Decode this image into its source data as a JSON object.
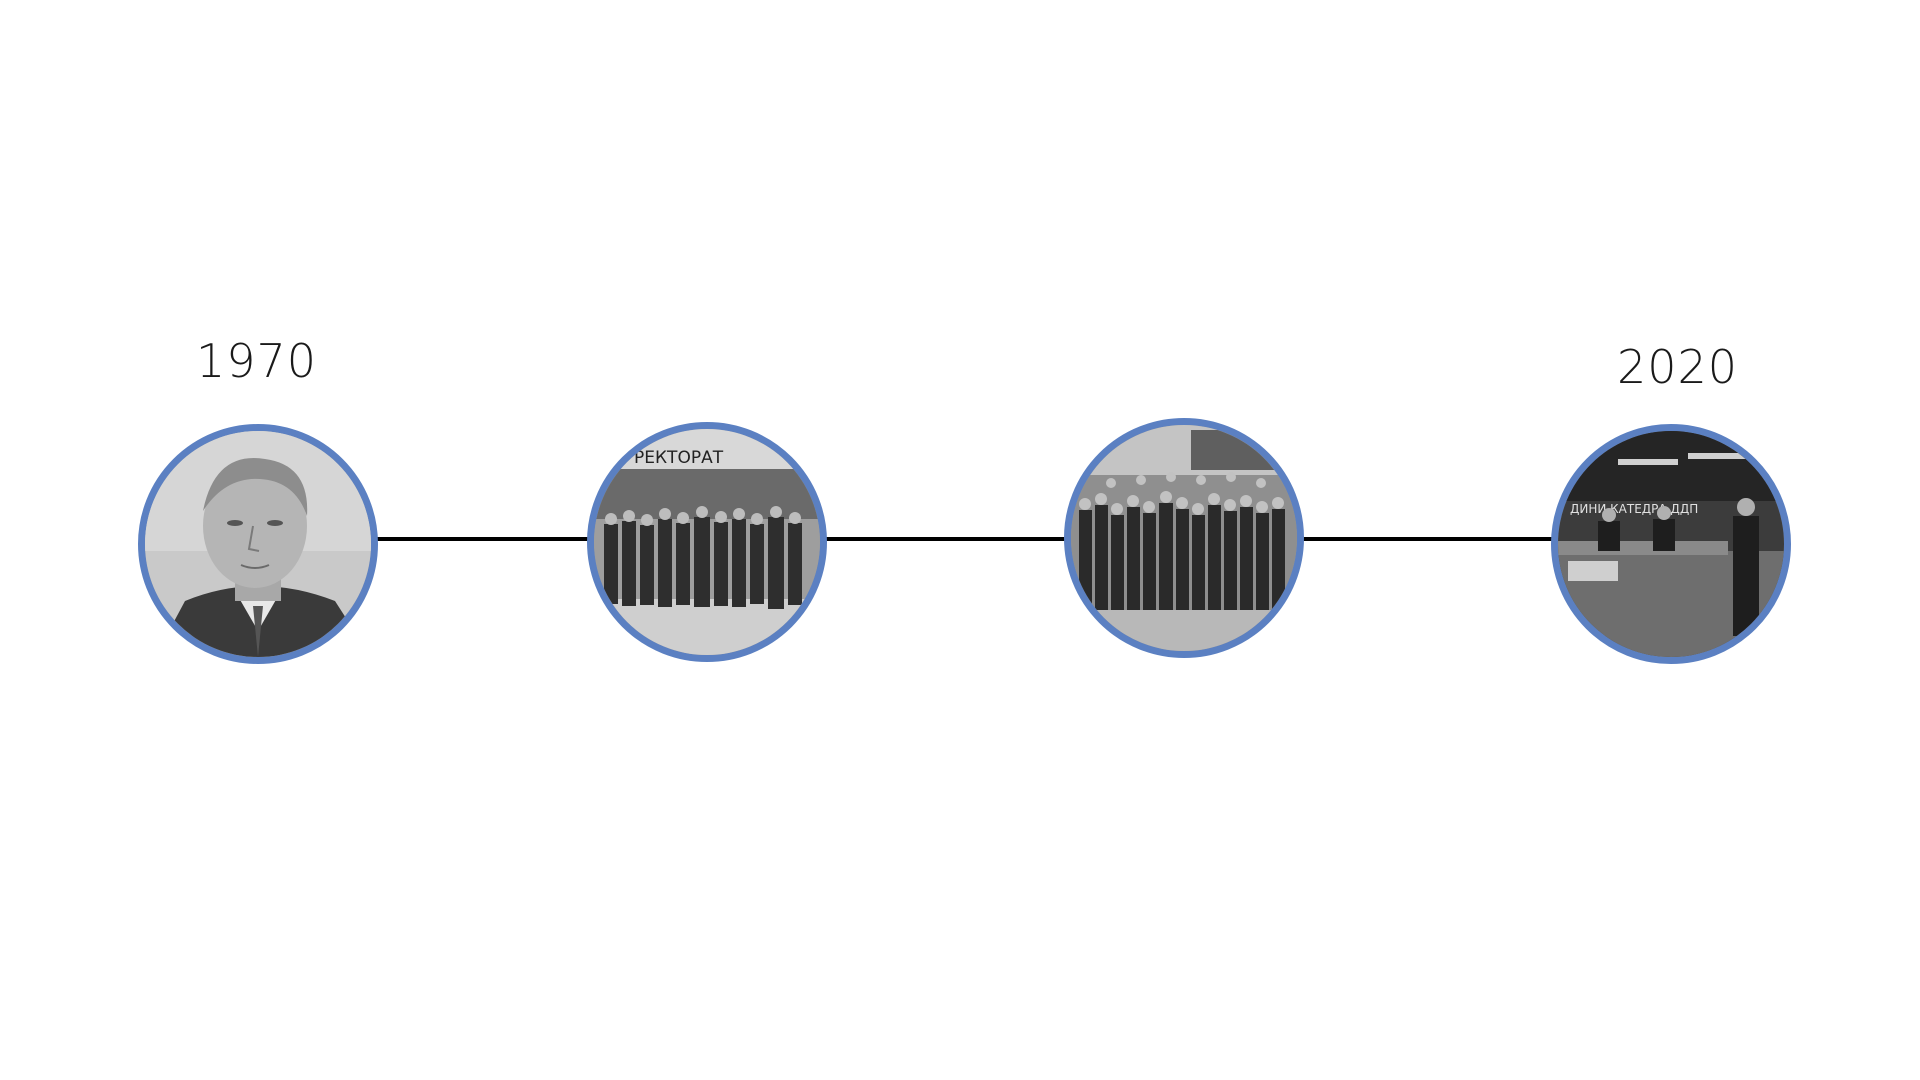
{
  "timeline": {
    "start_year": "1970",
    "end_year": "2020",
    "line_color": "#000000",
    "ring_color": "#5b80c2",
    "photos": [
      {
        "name": "portrait-photo",
        "caption": ""
      },
      {
        "name": "rectorate-group-photo",
        "sign": "РЕКТОРАТ"
      },
      {
        "name": "faculty-group-photo",
        "caption": ""
      },
      {
        "name": "ceremony-photo",
        "sign": "ДИНИ КАТЕДРА ДДП"
      }
    ]
  }
}
